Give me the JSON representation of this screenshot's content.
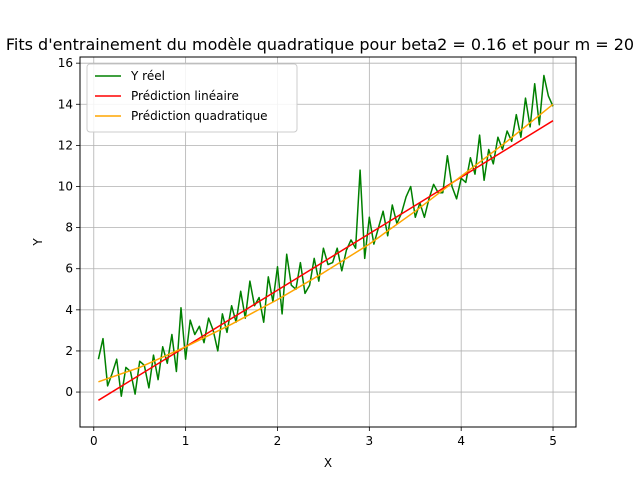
{
  "chart_data": {
    "type": "line",
    "title": "Fits d'entrainement du modèle quadratique pour beta2 = 0.16 et pour m = 20",
    "xlabel": "X",
    "ylabel": "Y",
    "xlim": [
      -0.15,
      5.25
    ],
    "ylim": [
      -1.7,
      16.3
    ],
    "xticks": [
      0,
      1,
      2,
      3,
      4,
      5
    ],
    "yticks": [
      0,
      2,
      4,
      6,
      8,
      10,
      12,
      14,
      16
    ],
    "grid": true,
    "legend_position": "top-left",
    "series": [
      {
        "name": "Y réel",
        "color": "#008000",
        "x": [
          0.05,
          0.1,
          0.15,
          0.2,
          0.25,
          0.3,
          0.35,
          0.4,
          0.45,
          0.5,
          0.55,
          0.6,
          0.65,
          0.7,
          0.75,
          0.8,
          0.85,
          0.9,
          0.95,
          1.0,
          1.05,
          1.1,
          1.15,
          1.2,
          1.25,
          1.3,
          1.35,
          1.4,
          1.45,
          1.5,
          1.55,
          1.6,
          1.65,
          1.7,
          1.75,
          1.8,
          1.85,
          1.9,
          1.95,
          2.0,
          2.05,
          2.1,
          2.15,
          2.2,
          2.25,
          2.3,
          2.35,
          2.4,
          2.45,
          2.5,
          2.55,
          2.6,
          2.65,
          2.7,
          2.75,
          2.8,
          2.85,
          2.9,
          2.95,
          3.0,
          3.05,
          3.1,
          3.15,
          3.2,
          3.25,
          3.3,
          3.35,
          3.4,
          3.45,
          3.5,
          3.55,
          3.6,
          3.65,
          3.7,
          3.75,
          3.8,
          3.85,
          3.9,
          3.95,
          4.0,
          4.05,
          4.1,
          4.15,
          4.2,
          4.25,
          4.3,
          4.35,
          4.4,
          4.45,
          4.5,
          4.55,
          4.6,
          4.65,
          4.7,
          4.75,
          4.8,
          4.85,
          4.9,
          4.95,
          5.0
        ],
        "y": [
          1.6,
          2.6,
          0.3,
          0.9,
          1.6,
          -0.2,
          1.2,
          1.0,
          -0.1,
          1.5,
          1.3,
          0.2,
          1.8,
          0.6,
          2.2,
          1.4,
          2.8,
          1.0,
          4.1,
          1.6,
          3.5,
          2.8,
          3.2,
          2.4,
          3.6,
          3.0,
          2.0,
          3.8,
          2.9,
          4.2,
          3.4,
          4.9,
          3.6,
          5.4,
          4.2,
          4.6,
          3.4,
          5.6,
          4.4,
          6.1,
          3.8,
          6.7,
          5.2,
          5.0,
          6.3,
          4.8,
          5.2,
          6.5,
          5.4,
          7.0,
          6.2,
          6.3,
          7.0,
          5.9,
          6.9,
          7.4,
          7.0,
          10.8,
          6.5,
          8.5,
          7.2,
          8.0,
          8.8,
          7.6,
          9.1,
          8.2,
          8.7,
          9.5,
          10.0,
          8.5,
          9.2,
          8.5,
          9.4,
          10.1,
          9.7,
          9.7,
          11.5,
          10.0,
          9.4,
          10.4,
          10.2,
          11.4,
          10.6,
          12.5,
          10.3,
          11.8,
          11.1,
          12.4,
          11.8,
          12.7,
          12.2,
          13.5,
          12.4,
          14.3,
          12.9,
          15.0,
          13.0,
          15.4,
          14.4,
          13.9
        ]
      },
      {
        "name": "Prédiction linéaire",
        "color": "#ff0000",
        "x": [
          0.05,
          5.0
        ],
        "y": [
          -0.4,
          13.2
        ]
      },
      {
        "name": "Prédiction quadratique",
        "color": "#ffa500",
        "x": [
          0.05,
          0.5,
          1.0,
          1.5,
          2.0,
          2.5,
          3.0,
          3.5,
          4.0,
          4.5,
          5.0
        ],
        "y": [
          0.5,
          1.2,
          2.2,
          3.3,
          4.5,
          5.8,
          7.2,
          8.8,
          10.5,
          12.2,
          14.0
        ]
      }
    ]
  }
}
